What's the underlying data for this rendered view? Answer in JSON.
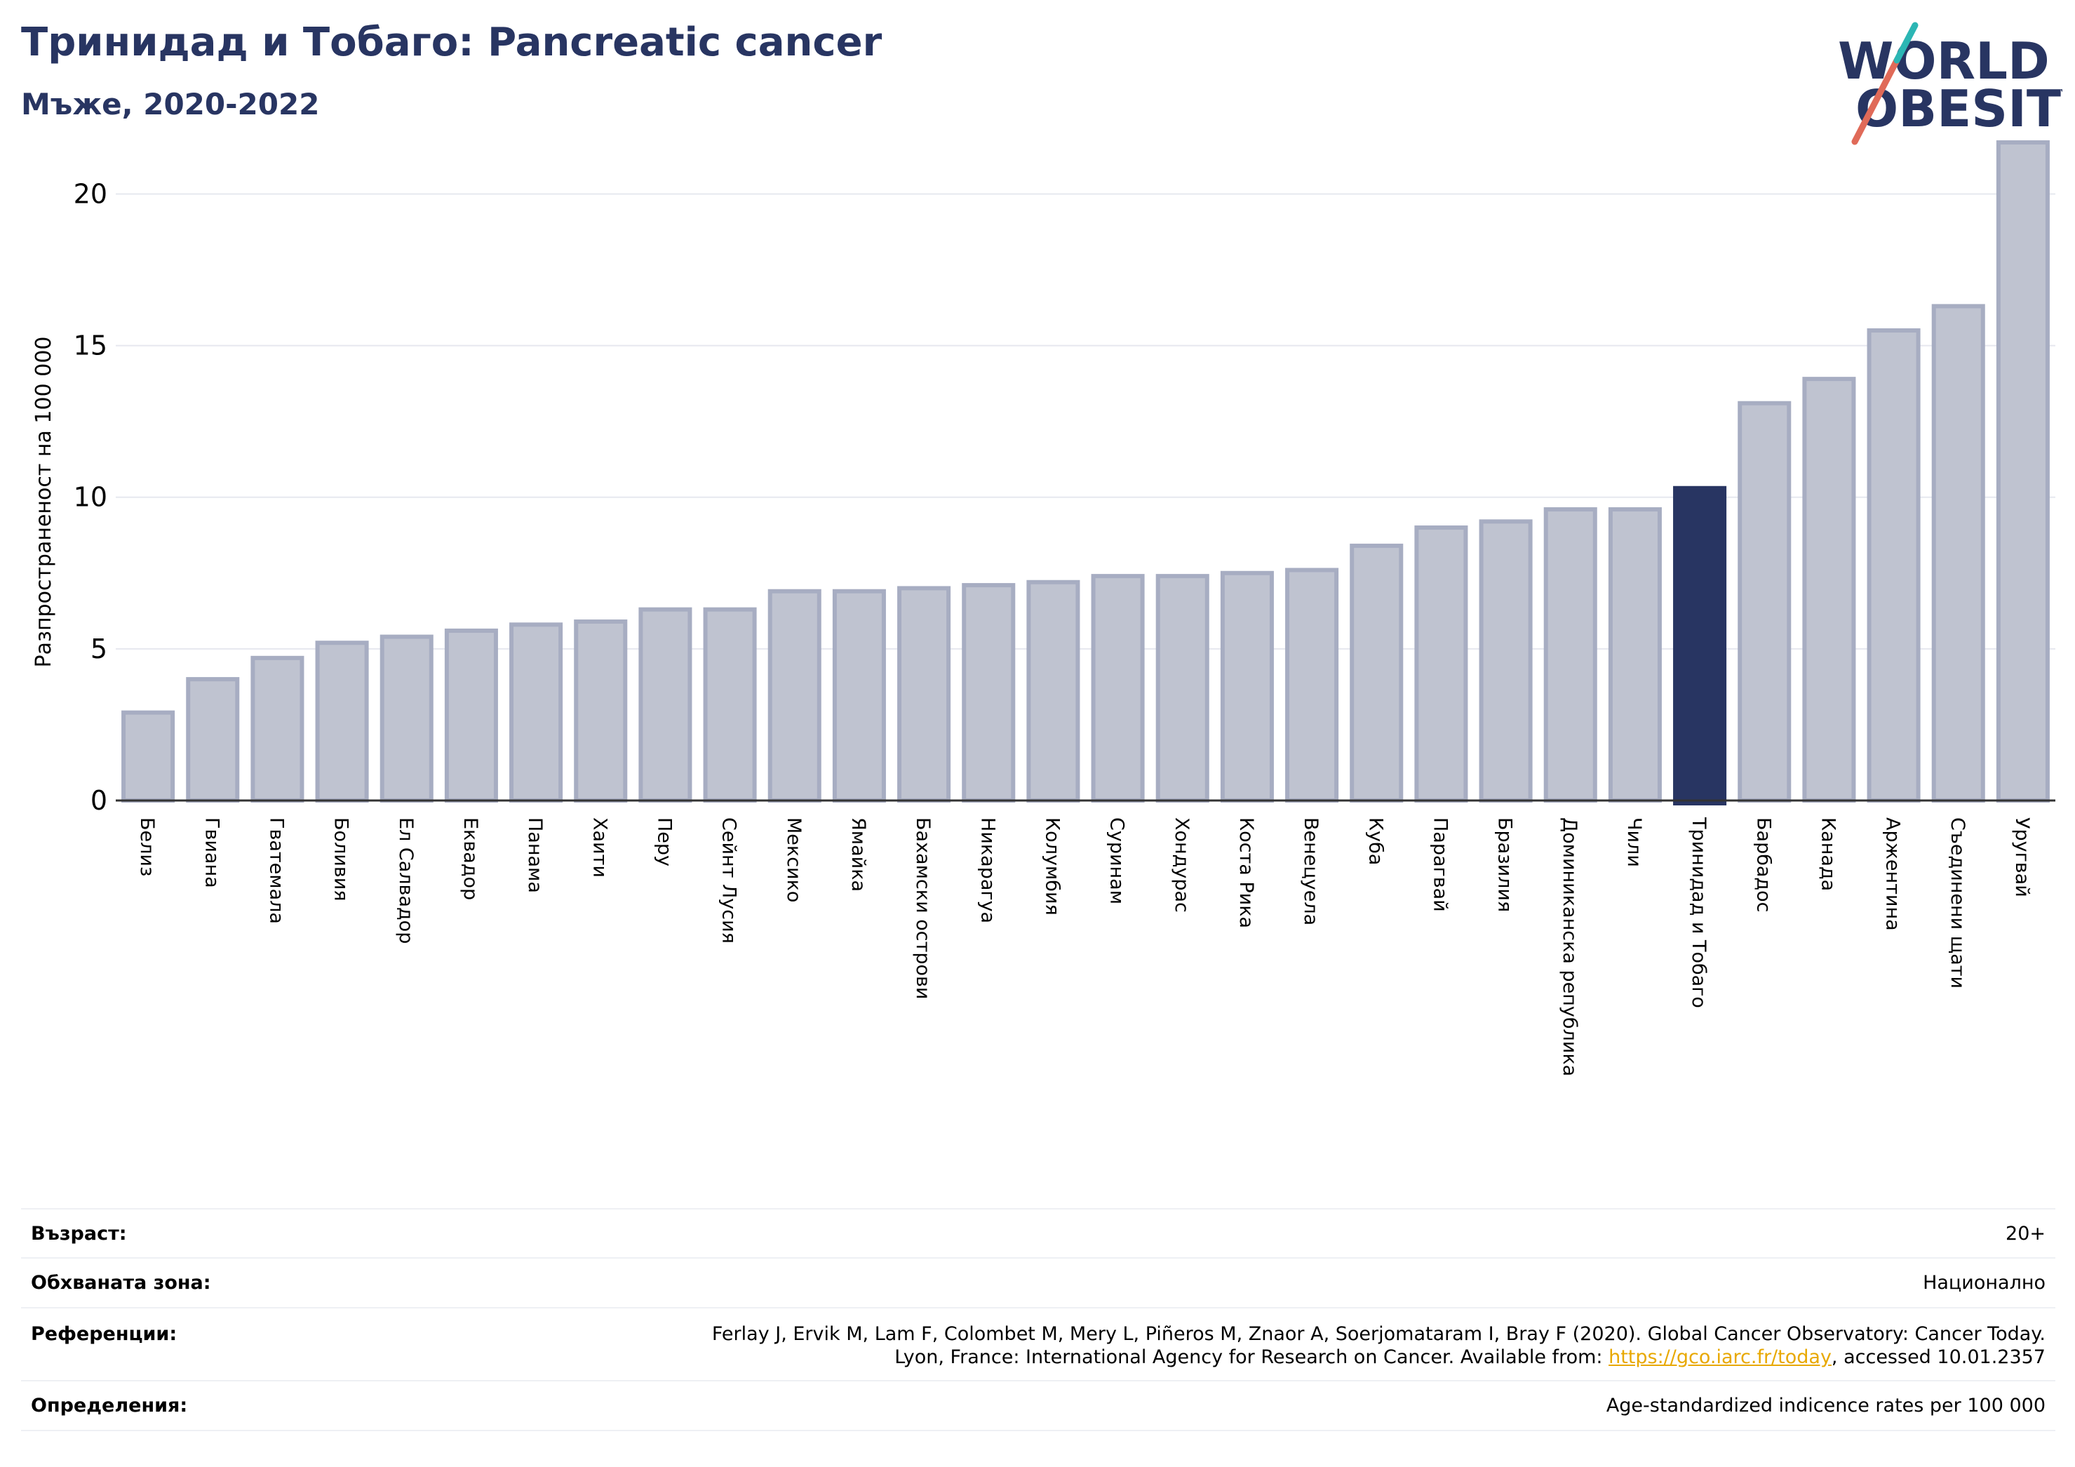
{
  "header": {
    "title": "Тринидад и Тобаго: Pancreatic cancer",
    "subtitle": "Мъже, 2020-2022"
  },
  "logo": {
    "line1": "WORLD",
    "line2": "OBESITY",
    "text_color": "#283562",
    "slash_colors": [
      "#e06a58",
      "#2cb6b4"
    ]
  },
  "chart_data": {
    "type": "bar",
    "ylabel": "Разпространеност  на 100 000",
    "xlabel": "",
    "ylim": [
      0,
      22
    ],
    "yticks": [
      0,
      5,
      10,
      15,
      20
    ],
    "grid": true,
    "highlight": "Тринидад и Тобаго",
    "colors": {
      "bar": "#bfc3d0",
      "bar_edge": "#a7adc2",
      "highlight": "#283562",
      "grid": "#e6e8ef"
    },
    "categories": [
      "Белиз",
      "Гвиана",
      "Гватемала",
      "Боливия",
      "Ел Салвадор",
      "Еквадор",
      "Панама",
      "Хаити",
      "Перу",
      "Сейнт Лусия",
      "Мексико",
      "Ямайка",
      "Бахамски острови",
      "Никарагуа",
      "Колумбия",
      "Суринам",
      "Хондурас",
      "Коста Рика",
      "Венецуела",
      "Куба",
      "Парагвай",
      "Бразилия",
      "Доминиканска република",
      "Чили",
      "Тринидад и Тобаго",
      "Барбадос",
      "Канада",
      "Аржентина",
      "Съединени щати",
      "Уругвай"
    ],
    "values": [
      2.9,
      4.0,
      4.7,
      5.2,
      5.4,
      5.6,
      5.8,
      5.9,
      6.3,
      6.3,
      6.9,
      6.9,
      7.0,
      7.1,
      7.2,
      7.4,
      7.4,
      7.5,
      7.6,
      8.4,
      9.0,
      9.2,
      9.6,
      9.6,
      10.3,
      13.1,
      13.9,
      15.5,
      16.3,
      21.7
    ]
  },
  "info": {
    "age_label": "Възраст:",
    "age_value": "20+",
    "area_label": "Обхваната зона:",
    "area_value": "Национално",
    "refs_label": "Референции:",
    "refs_line1": "Ferlay J, Ervik M, Lam F, Colombet M, Mery L, Piñeros M, Znaor A, Soerjomataram I, Bray F (2020). Global Cancer Observatory: Cancer Today.",
    "refs_line2_pre": "Lyon, France: International Agency for Research on Cancer. Available from: ",
    "refs_link": "https://gco.iarc.fr/today",
    "refs_line2_post": ", accessed 10.01.2357",
    "defs_label": "Определения:",
    "defs_value": "Age-standardized indicence rates per 100 000"
  }
}
